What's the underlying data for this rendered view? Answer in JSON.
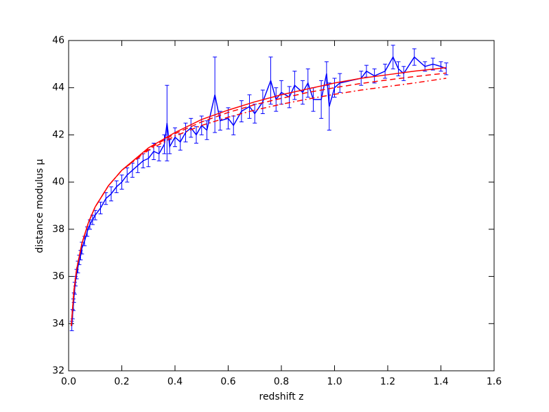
{
  "chart_data": {
    "type": "line",
    "xlabel": "redshift z",
    "ylabel": "distance modulus μ",
    "xlim": [
      0,
      1.6
    ],
    "ylim": [
      32,
      46
    ],
    "xticks": [
      {
        "value": 0,
        "label": "0.0"
      },
      {
        "value": 0.2,
        "label": "0.2"
      },
      {
        "value": 0.4,
        "label": "0.4"
      },
      {
        "value": 0.6,
        "label": "0.6"
      },
      {
        "value": 0.8,
        "label": "0.8"
      },
      {
        "value": 1.0,
        "label": "1.0"
      },
      {
        "value": 1.2,
        "label": "1.2"
      },
      {
        "value": 1.4,
        "label": "1.4"
      },
      {
        "value": 1.6,
        "label": "1.6"
      }
    ],
    "yticks": [
      32,
      34,
      36,
      38,
      40,
      42,
      44,
      46
    ],
    "series": [
      {
        "color": "#0000ff",
        "linestyle": "solid",
        "x": [
          0.012,
          0.015,
          0.018,
          0.02,
          0.023,
          0.026,
          0.03,
          0.035,
          0.04,
          0.045,
          0.05,
          0.06,
          0.07,
          0.08,
          0.09,
          0.1,
          0.12,
          0.14,
          0.16,
          0.18,
          0.2,
          0.22,
          0.24,
          0.26,
          0.28,
          0.3,
          0.32,
          0.34,
          0.36,
          0.37,
          0.38,
          0.4,
          0.42,
          0.44,
          0.46,
          0.48,
          0.5,
          0.52,
          0.55,
          0.57,
          0.6,
          0.62,
          0.65,
          0.68,
          0.7,
          0.73,
          0.76,
          0.78,
          0.8,
          0.83,
          0.85,
          0.88,
          0.9,
          0.92,
          0.95,
          0.97,
          0.98,
          1.0,
          1.02,
          1.1,
          1.12,
          1.15,
          1.19,
          1.22,
          1.24,
          1.26,
          1.3,
          1.34,
          1.37,
          1.4,
          1.42
        ],
        "values": [
          33.9,
          34.4,
          34.8,
          35.1,
          35.5,
          35.8,
          36.1,
          36.4,
          36.7,
          36.9,
          37.2,
          37.5,
          37.9,
          38.2,
          38.4,
          38.6,
          38.9,
          39.3,
          39.5,
          39.8,
          40.0,
          40.3,
          40.5,
          40.7,
          40.9,
          41.0,
          41.3,
          41.2,
          41.6,
          42.5,
          41.5,
          41.9,
          41.7,
          42.1,
          42.3,
          42.0,
          42.4,
          42.2,
          43.7,
          42.6,
          42.7,
          42.4,
          43.0,
          43.2,
          42.9,
          43.4,
          44.3,
          43.5,
          43.8,
          43.6,
          44.1,
          43.8,
          44.2,
          43.5,
          43.5,
          44.6,
          43.2,
          44.0,
          44.2,
          44.4,
          44.7,
          44.5,
          44.7,
          45.3,
          44.8,
          44.6,
          45.3,
          44.9,
          45.0,
          44.9,
          44.8
        ],
        "errors": [
          0.2,
          0.2,
          0.25,
          0.2,
          0.25,
          0.2,
          0.2,
          0.25,
          0.2,
          0.2,
          0.25,
          0.2,
          0.2,
          0.2,
          0.2,
          0.2,
          0.25,
          0.25,
          0.3,
          0.25,
          0.3,
          0.3,
          0.3,
          0.3,
          0.3,
          0.35,
          0.35,
          0.3,
          0.4,
          1.6,
          0.3,
          0.4,
          0.35,
          0.4,
          0.4,
          0.35,
          0.4,
          0.4,
          1.6,
          0.4,
          0.45,
          0.4,
          0.45,
          0.5,
          0.4,
          0.5,
          1.0,
          0.5,
          0.5,
          0.45,
          0.6,
          0.5,
          0.6,
          0.5,
          0.8,
          0.5,
          1.0,
          0.4,
          0.4,
          0.3,
          0.25,
          0.3,
          0.3,
          0.5,
          0.3,
          0.3,
          0.35,
          0.2,
          0.25,
          0.2,
          0.25
        ]
      },
      {
        "color": "#ff0000",
        "linestyle": "solid",
        "x": [
          0.01,
          0.02,
          0.03,
          0.05,
          0.075,
          0.1,
          0.15,
          0.2,
          0.3,
          0.4,
          0.5,
          0.6,
          0.7,
          0.8,
          0.9,
          1.0,
          1.1,
          1.2,
          1.3,
          1.42
        ],
        "values": [
          33.9,
          35.4,
          36.3,
          37.4,
          38.3,
          38.95,
          39.85,
          40.5,
          41.45,
          42.1,
          42.65,
          43.05,
          43.4,
          43.7,
          43.95,
          44.2,
          44.4,
          44.55,
          44.7,
          44.85
        ]
      },
      {
        "color": "#ff0000",
        "linestyle": "dashed",
        "x": [
          0.01,
          0.02,
          0.03,
          0.05,
          0.075,
          0.1,
          0.15,
          0.2,
          0.3,
          0.4,
          0.5,
          0.6,
          0.7,
          0.8,
          0.9,
          1.0,
          1.1,
          1.2,
          1.3,
          1.42
        ],
        "values": [
          33.9,
          35.4,
          36.3,
          37.4,
          38.3,
          38.95,
          39.85,
          40.5,
          41.4,
          42.05,
          42.55,
          42.95,
          43.28,
          43.55,
          43.8,
          44.0,
          44.18,
          44.33,
          44.47,
          44.62
        ]
      },
      {
        "color": "#ff0000",
        "linestyle": "dashdot",
        "x": [
          0.01,
          0.02,
          0.03,
          0.05,
          0.075,
          0.1,
          0.15,
          0.2,
          0.3,
          0.4,
          0.5,
          0.6,
          0.7,
          0.8,
          0.9,
          1.0,
          1.1,
          1.2,
          1.3,
          1.42
        ],
        "values": [
          33.9,
          35.4,
          36.3,
          37.4,
          38.3,
          38.95,
          39.85,
          40.5,
          41.35,
          41.95,
          42.4,
          42.75,
          43.05,
          43.3,
          43.52,
          43.72,
          43.9,
          44.05,
          44.2,
          44.4
        ]
      }
    ]
  }
}
